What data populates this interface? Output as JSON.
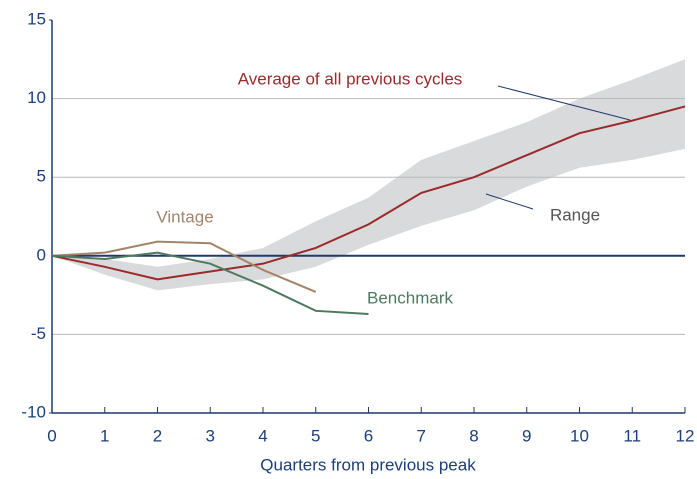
{
  "chart_data": {
    "type": "line",
    "x_label": "Quarters from previous peak",
    "x": [
      0,
      1,
      2,
      3,
      4,
      5,
      6,
      7,
      8,
      9,
      10,
      11,
      12
    ],
    "xlim": [
      0,
      12
    ],
    "xticks": [
      0,
      1,
      2,
      3,
      4,
      5,
      6,
      7,
      8,
      9,
      10,
      11,
      12
    ],
    "ylim": [
      -10,
      15
    ],
    "yticks": [
      -10,
      -5,
      0,
      5,
      10,
      15
    ],
    "grid": true,
    "range": {
      "name": "Range",
      "color": "#d9dadc",
      "upper": [
        0,
        -0.2,
        -0.7,
        -0.2,
        0.5,
        2.2,
        3.7,
        6.1,
        7.3,
        8.5,
        10,
        11.2,
        12.5
      ],
      "lower": [
        0,
        -1.2,
        -2.2,
        -1.8,
        -1.5,
        -0.7,
        0.7,
        1.9,
        2.9,
        4.4,
        5.6,
        6.1,
        6.8
      ]
    },
    "series": [
      {
        "name": "Average of all previous cycles",
        "color": "#9b2a2c",
        "values": [
          0,
          -0.7,
          -1.5,
          -1.0,
          -0.5,
          0.5,
          2.0,
          4.0,
          5.0,
          6.4,
          7.8,
          8.6,
          9.5
        ]
      },
      {
        "name": "Vintage",
        "color": "#a3846a",
        "values": [
          0,
          0.2,
          0.9,
          0.8,
          -0.9,
          -2.3,
          null,
          null,
          null,
          null,
          null,
          null,
          null
        ]
      },
      {
        "name": "Benchmark",
        "color": "#4d7a5f",
        "values": [
          0,
          -0.2,
          0.2,
          -0.5,
          -1.9,
          -3.5,
          -3.7,
          null,
          null,
          null,
          null,
          null,
          null
        ]
      }
    ]
  }
}
